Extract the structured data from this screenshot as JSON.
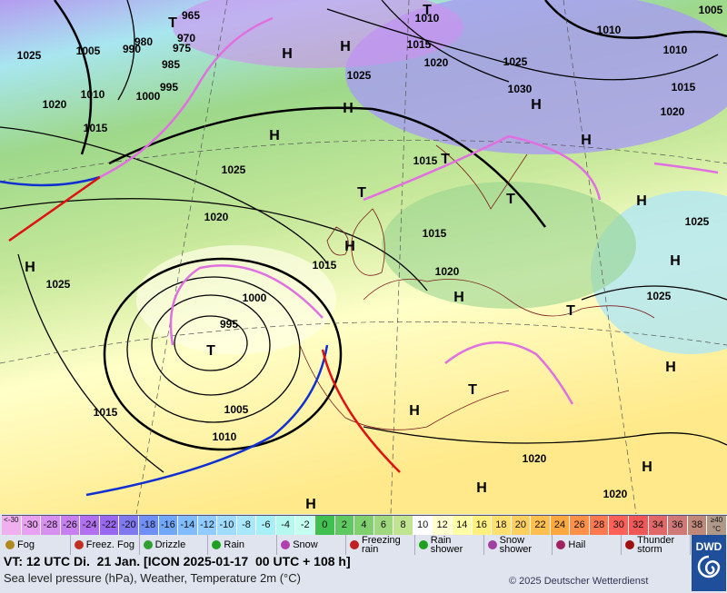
{
  "map": {
    "isobar_labels": [
      965,
      970,
      975,
      980,
      985,
      990,
      995,
      1000,
      1005,
      1010,
      1015,
      1020,
      1025,
      1025,
      1020,
      1025,
      1015,
      1010,
      1005,
      995,
      1000,
      1015,
      1015,
      1020,
      1025,
      1020,
      1015,
      1010,
      1010,
      1025,
      1030,
      1010,
      1015,
      1020,
      1005,
      1025,
      1025,
      1020,
      1020,
      1015
    ],
    "pressure_centers": [
      "T",
      "H",
      "H",
      "H",
      "H",
      "T",
      "H",
      "H",
      "H",
      "T",
      "T",
      "T",
      "H",
      "H",
      "H",
      "T",
      "H",
      "H",
      "T",
      "H",
      "H",
      "H",
      "H",
      "T"
    ]
  },
  "temperature_scale": [
    {
      "label": "<-30",
      "color": "#f0b0f0"
    },
    {
      "label": "-30",
      "color": "#e8a0f0"
    },
    {
      "label": "-28",
      "color": "#d890f0"
    },
    {
      "label": "-26",
      "color": "#c880f0"
    },
    {
      "label": "-24",
      "color": "#b070f0"
    },
    {
      "label": "-22",
      "color": "#9868f0"
    },
    {
      "label": "-20",
      "color": "#8078f0"
    },
    {
      "label": "-18",
      "color": "#7090f8"
    },
    {
      "label": "-16",
      "color": "#70a8ff"
    },
    {
      "label": "-14",
      "color": "#80bcff"
    },
    {
      "label": "-12",
      "color": "#90ccff"
    },
    {
      "label": "-10",
      "color": "#a0dcff"
    },
    {
      "label": "-8",
      "color": "#a8e8ff"
    },
    {
      "label": "-6",
      "color": "#a8f0f8"
    },
    {
      "label": "-4",
      "color": "#b4f8f0"
    },
    {
      "label": "-2",
      "color": "#c4fff0"
    },
    {
      "label": "0",
      "color": "#40c050"
    },
    {
      "label": "2",
      "color": "#60c860"
    },
    {
      "label": "4",
      "color": "#80d070"
    },
    {
      "label": "6",
      "color": "#a0d880"
    },
    {
      "label": "8",
      "color": "#c0e490"
    },
    {
      "label": "10",
      "color": "#ffffff"
    },
    {
      "label": "12",
      "color": "#ffffd0"
    },
    {
      "label": "14",
      "color": "#ffffa8"
    },
    {
      "label": "16",
      "color": "#fff080"
    },
    {
      "label": "18",
      "color": "#ffe070"
    },
    {
      "label": "20",
      "color": "#ffd060"
    },
    {
      "label": "22",
      "color": "#ffc050"
    },
    {
      "label": "24",
      "color": "#ffa840"
    },
    {
      "label": "26",
      "color": "#ff9048"
    },
    {
      "label": "28",
      "color": "#ff7850"
    },
    {
      "label": "30",
      "color": "#ff6058"
    },
    {
      "label": "32",
      "color": "#f05858"
    },
    {
      "label": "34",
      "color": "#e06868"
    },
    {
      "label": "36",
      "color": "#d07878"
    },
    {
      "label": "38",
      "color": "#c08878"
    },
    {
      "label": "≥40 °C",
      "color": "#b09888"
    }
  ],
  "weather_legend": [
    {
      "label": "Fog",
      "color": "#b08a20"
    },
    {
      "label": "Freez. Fog",
      "color": "#c03020"
    },
    {
      "label": "Drizzle",
      "color": "#30a030"
    },
    {
      "label": "Rain",
      "color": "#20a020"
    },
    {
      "label": "Snow",
      "color": "#b040b0"
    },
    {
      "label": "Freezing rain",
      "color": "#c02020"
    },
    {
      "label": "Rain shower",
      "color": "#20a020"
    },
    {
      "label": "Snow shower",
      "color": "#a040a0"
    },
    {
      "label": "Hail",
      "color": "#a02060"
    },
    {
      "label": "Thunder storm",
      "color": "#a01010"
    }
  ],
  "caption": {
    "valid_time": "VT: 12 UTC Di.  21 Jan. [ICON 2025-01-17  00 UTC + 108 h]",
    "description": "Sea level pressure (hPa), Weather, Temperature 2m (°C)",
    "copyright": "© 2025 Deutscher Wetterdienst"
  },
  "logo": "DWD"
}
